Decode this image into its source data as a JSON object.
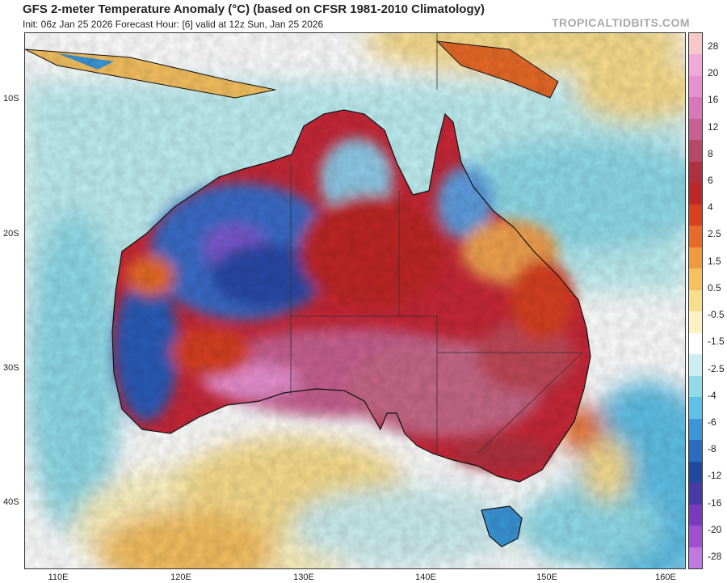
{
  "header": {
    "title": "GFS 2-meter Temperature Anomaly (°C) (based on CFSR 1981-2010 Climatology)",
    "subtitle": "Init: 06z Jan 25 2026   Forecast Hour: [6]   valid at 12z Sun, Jan 25 2026",
    "watermark": "TROPICALTIDBITS.COM"
  },
  "map": {
    "lat_labels": [
      "10S",
      "20S",
      "30S",
      "40S"
    ],
    "lon_labels": [
      "110E",
      "120E",
      "130E",
      "140E",
      "150E",
      "160E"
    ]
  },
  "colorbar": {
    "labels": [
      "28",
      "20",
      "16",
      "12",
      "8",
      "6",
      "4",
      "2.5",
      "1.5",
      "0.5",
      "-0.5",
      "-1.5",
      "-2.5",
      "-4",
      "-6",
      "-8",
      "-12",
      "-16",
      "-20",
      "-28"
    ],
    "colors": [
      "#f8c8c8",
      "#f0a8d8",
      "#e890d0",
      "#d878b8",
      "#c86090",
      "#b84868",
      "#b03040",
      "#c02828",
      "#d84020",
      "#e86a28",
      "#f09a40",
      "#f5c060",
      "#f8dd8c",
      "#fdf3c0",
      "#ffffff",
      "#cdeef0",
      "#8fdbe8",
      "#5ec0e6",
      "#3a96d8",
      "#2a6cc0",
      "#1f4aa0",
      "#4a3aa8",
      "#7a3ac0",
      "#a050d0",
      "#c078e0"
    ]
  }
}
